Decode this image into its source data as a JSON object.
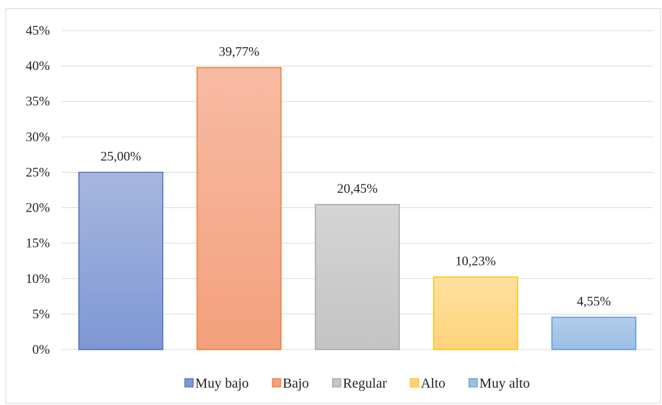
{
  "chart_data": {
    "type": "bar",
    "categories": [
      "Muy bajo",
      "Bajo",
      "Regular",
      "Alto",
      "Muy alto"
    ],
    "values": [
      25.0,
      39.77,
      20.45,
      10.23,
      4.55
    ],
    "value_labels": [
      "25,00%",
      "39,77%",
      "20,45%",
      "10,23%",
      "4,55%"
    ],
    "ylim": [
      0,
      45
    ],
    "yticks": [
      0,
      5,
      10,
      15,
      20,
      25,
      30,
      35,
      40,
      45
    ],
    "ytick_labels": [
      "0%",
      "5%",
      "10%",
      "15%",
      "20%",
      "25%",
      "30%",
      "35%",
      "40%",
      "45%"
    ],
    "grid": true,
    "legend_position": "bottom",
    "colors": {
      "Muy bajo": {
        "top": "#a6b6df",
        "bottom": "#7e98d4",
        "border": "#4a6ec0"
      },
      "Bajo": {
        "top": "#f7bba3",
        "bottom": "#f4a07c",
        "border": "#ed7d31"
      },
      "Regular": {
        "top": "#d4d4d4",
        "bottom": "#c4c4c4",
        "border": "#a5a5a5"
      },
      "Alto": {
        "top": "#ffe0a0",
        "bottom": "#ffd37a",
        "border": "#ffc000"
      },
      "Muy alto": {
        "top": "#b2cdea",
        "bottom": "#9bbfe6",
        "border": "#5b9bd5"
      }
    }
  }
}
